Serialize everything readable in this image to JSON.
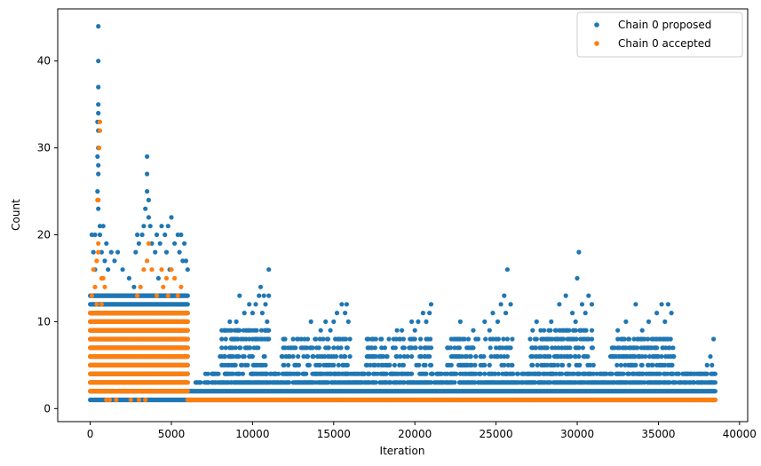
{
  "chart_data": {
    "type": "scatter",
    "xlabel": "Iteration",
    "ylabel": "Count",
    "xlim": [
      -2000,
      40500
    ],
    "ylim": [
      -1.5,
      46
    ],
    "xticks": [
      0,
      5000,
      10000,
      15000,
      20000,
      25000,
      30000,
      35000,
      40000
    ],
    "yticks": [
      0,
      10,
      20,
      30,
      40
    ],
    "legend_position": "top-right",
    "grid": false,
    "series": [
      {
        "name": "Chain 0 proposed",
        "color": "#1f77b4",
        "points": [
          [
            500,
            44
          ],
          [
            500,
            40
          ],
          [
            500,
            37
          ],
          [
            500,
            35
          ],
          [
            500,
            34
          ],
          [
            450,
            33
          ],
          [
            500,
            32
          ],
          [
            500,
            30
          ],
          [
            450,
            29
          ],
          [
            500,
            28
          ],
          [
            500,
            27
          ],
          [
            450,
            25
          ],
          [
            500,
            24
          ],
          [
            500,
            23
          ],
          [
            600,
            21
          ],
          [
            800,
            21
          ],
          [
            100,
            20
          ],
          [
            300,
            20
          ],
          [
            600,
            20
          ],
          [
            1000,
            19
          ],
          [
            200,
            18
          ],
          [
            700,
            18
          ],
          [
            1300,
            18
          ],
          [
            1700,
            18
          ],
          [
            900,
            17
          ],
          [
            1500,
            17
          ],
          [
            300,
            16
          ],
          [
            1100,
            16
          ],
          [
            2000,
            16
          ],
          [
            2400,
            15
          ],
          [
            2700,
            14
          ],
          [
            3500,
            29
          ],
          [
            3500,
            27
          ],
          [
            3500,
            25
          ],
          [
            3600,
            24
          ],
          [
            3400,
            23
          ],
          [
            3600,
            22
          ],
          [
            3300,
            21
          ],
          [
            3700,
            21
          ],
          [
            5000,
            22
          ],
          [
            4400,
            21
          ],
          [
            4800,
            21
          ],
          [
            2900,
            20
          ],
          [
            3200,
            20
          ],
          [
            4100,
            20
          ],
          [
            4600,
            20
          ],
          [
            5400,
            20
          ],
          [
            5600,
            20
          ],
          [
            3000,
            19
          ],
          [
            3800,
            19
          ],
          [
            4300,
            19
          ],
          [
            5200,
            19
          ],
          [
            5800,
            19
          ],
          [
            2800,
            18
          ],
          [
            4000,
            18
          ],
          [
            4700,
            18
          ],
          [
            5500,
            18
          ],
          [
            5900,
            17
          ],
          [
            5700,
            17
          ],
          [
            6000,
            16
          ],
          [
            4900,
            16
          ],
          [
            4200,
            15
          ],
          [
            9200,
            13
          ],
          [
            10400,
            13
          ],
          [
            10700,
            13
          ],
          [
            11000,
            13
          ],
          [
            11000,
            16
          ],
          [
            10500,
            14
          ],
          [
            9800,
            12
          ],
          [
            10200,
            12
          ],
          [
            10800,
            12
          ],
          [
            9500,
            11
          ],
          [
            10000,
            11
          ],
          [
            10600,
            11
          ],
          [
            8600,
            10
          ],
          [
            9000,
            10
          ],
          [
            10900,
            10
          ],
          [
            15500,
            12
          ],
          [
            15800,
            12
          ],
          [
            15200,
            11
          ],
          [
            15700,
            11
          ],
          [
            15000,
            10
          ],
          [
            13600,
            10
          ],
          [
            14500,
            10
          ],
          [
            15900,
            10
          ],
          [
            14200,
            9
          ],
          [
            14800,
            9
          ],
          [
            20500,
            11
          ],
          [
            20900,
            11
          ],
          [
            21000,
            12
          ],
          [
            19800,
            10
          ],
          [
            20200,
            10
          ],
          [
            20700,
            10
          ],
          [
            19200,
            9
          ],
          [
            18900,
            9
          ],
          [
            20000,
            9
          ],
          [
            25700,
            16
          ],
          [
            25500,
            13
          ],
          [
            25300,
            12
          ],
          [
            25900,
            12
          ],
          [
            24800,
            11
          ],
          [
            25600,
            11
          ],
          [
            24300,
            10
          ],
          [
            25100,
            10
          ],
          [
            22800,
            10
          ],
          [
            23600,
            9
          ],
          [
            24600,
            9
          ],
          [
            30100,
            18
          ],
          [
            30000,
            15
          ],
          [
            29300,
            13
          ],
          [
            30700,
            13
          ],
          [
            28900,
            12
          ],
          [
            30300,
            12
          ],
          [
            30900,
            12
          ],
          [
            29700,
            11
          ],
          [
            30500,
            11
          ],
          [
            27500,
            10
          ],
          [
            28400,
            10
          ],
          [
            29900,
            10
          ],
          [
            33600,
            12
          ],
          [
            35200,
            12
          ],
          [
            35600,
            12
          ],
          [
            34900,
            11
          ],
          [
            35800,
            11
          ],
          [
            34400,
            10
          ],
          [
            35400,
            10
          ],
          [
            33000,
            10
          ],
          [
            34000,
            9
          ],
          [
            32500,
            9
          ],
          [
            38400,
            8
          ],
          [
            38200,
            6
          ],
          [
            38000,
            5
          ],
          [
            38300,
            5
          ],
          [
            37600,
            4
          ],
          [
            36800,
            4
          ],
          [
            37200,
            4
          ],
          [
            37900,
            3
          ]
        ],
        "bands": [
          {
            "x": [
              0,
              6000
            ],
            "y": [
              1,
              13
            ]
          },
          {
            "x": [
              6000,
              38500
            ],
            "y": [
              1,
              2
            ]
          },
          {
            "x": [
              6500,
              38500
            ],
            "y": [
              3,
              3
            ],
            "density": 0.7
          },
          {
            "x": [
              7000,
              38500
            ],
            "y": [
              4,
              4
            ],
            "density": 0.5
          },
          {
            "x": [
              8000,
              11000
            ],
            "y": [
              5,
              9
            ],
            "density": 0.35
          },
          {
            "x": [
              11800,
              16000
            ],
            "y": [
              5,
              8
            ],
            "density": 0.3
          },
          {
            "x": [
              17000,
              21000
            ],
            "y": [
              5,
              8
            ],
            "density": 0.3
          },
          {
            "x": [
              22000,
              26000
            ],
            "y": [
              5,
              8
            ],
            "density": 0.3
          },
          {
            "x": [
              27000,
              31000
            ],
            "y": [
              5,
              9
            ],
            "density": 0.35
          },
          {
            "x": [
              32000,
              36000
            ],
            "y": [
              5,
              8
            ],
            "density": 0.35
          }
        ]
      },
      {
        "name": "Chain 0 accepted",
        "color": "#ff7f0e",
        "points": [
          [
            600,
            33
          ],
          [
            600,
            32
          ],
          [
            550,
            30
          ],
          [
            450,
            24
          ],
          [
            500,
            24
          ],
          [
            500,
            19
          ],
          [
            500,
            18
          ],
          [
            400,
            17
          ],
          [
            200,
            16
          ],
          [
            700,
            15
          ],
          [
            800,
            15
          ],
          [
            300,
            14
          ],
          [
            900,
            14
          ],
          [
            100,
            13
          ],
          [
            400,
            12
          ],
          [
            700,
            12
          ],
          [
            3600,
            19
          ],
          [
            3500,
            17
          ],
          [
            3300,
            16
          ],
          [
            3800,
            16
          ],
          [
            4400,
            16
          ],
          [
            5000,
            16
          ],
          [
            4700,
            15
          ],
          [
            5200,
            15
          ],
          [
            3100,
            14
          ],
          [
            4500,
            14
          ],
          [
            5600,
            14
          ],
          [
            2900,
            13
          ],
          [
            4100,
            13
          ],
          [
            4800,
            13
          ],
          [
            5400,
            13
          ],
          [
            1000,
            1
          ],
          [
            1200,
            1
          ],
          [
            1600,
            1
          ],
          [
            2000,
            2
          ],
          [
            2500,
            1
          ],
          [
            3000,
            1
          ],
          [
            3400,
            1
          ]
        ],
        "bands": [
          {
            "x": [
              0,
              6000
            ],
            "y": [
              2,
              11
            ]
          },
          {
            "x": [
              6000,
              38500
            ],
            "y": [
              1,
              1
            ]
          }
        ]
      }
    ]
  }
}
